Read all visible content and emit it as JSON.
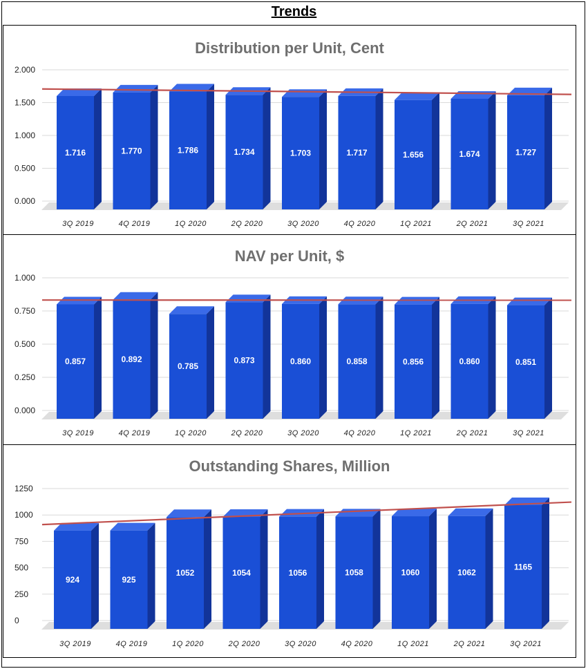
{
  "page": {
    "title": "Trends"
  },
  "chart_data": [
    {
      "type": "bar",
      "title": "Distribution per Unit, Cent",
      "categories": [
        "3Q 2019",
        "4Q 2019",
        "1Q 2020",
        "2Q 2020",
        "3Q 2020",
        "4Q 2020",
        "1Q 2021",
        "2Q 2021",
        "3Q 2021"
      ],
      "values": [
        1.716,
        1.77,
        1.786,
        1.734,
        1.703,
        1.717,
        1.656,
        1.674,
        1.727
      ],
      "labels": [
        "1.716",
        "1.770",
        "1.786",
        "1.734",
        "1.703",
        "1.717",
        "1.656",
        "1.674",
        "1.727"
      ],
      "yticks": [
        "2.000",
        "1.500",
        "1.000",
        "0.500",
        "0.000"
      ],
      "ylim": [
        0,
        2
      ],
      "trendline": [
        1.766,
        1.683
      ],
      "xlabel": "",
      "ylabel": ""
    },
    {
      "type": "bar",
      "title": "NAV per Unit, $",
      "categories": [
        "3Q 2019",
        "4Q 2019",
        "1Q 2020",
        "2Q 2020",
        "3Q 2020",
        "4Q 2020",
        "1Q 2021",
        "2Q 2021",
        "3Q 2021"
      ],
      "values": [
        0.857,
        0.892,
        0.785,
        0.873,
        0.86,
        0.858,
        0.856,
        0.86,
        0.851
      ],
      "labels": [
        "0.857",
        "0.892",
        "0.785",
        "0.873",
        "0.860",
        "0.858",
        "0.856",
        "0.860",
        "0.851"
      ],
      "yticks": [
        "1.000",
        "0.750",
        "0.500",
        "0.250",
        "0.000"
      ],
      "ylim": [
        0,
        1
      ],
      "trendline": [
        0.861,
        0.86
      ],
      "xlabel": "",
      "ylabel": ""
    },
    {
      "type": "bar",
      "title": "Outstanding Shares, Million",
      "categories": [
        "3Q 2019",
        "4Q 2019",
        "1Q 2020",
        "2Q 2020",
        "3Q 2020",
        "4Q 2020",
        "1Q 2021",
        "2Q 2021",
        "3Q 2021"
      ],
      "values": [
        924,
        925,
        1052,
        1054,
        1056,
        1058,
        1060,
        1062,
        1165
      ],
      "labels": [
        "924",
        "925",
        "1052",
        "1054",
        "1056",
        "1058",
        "1060",
        "1062",
        "1165"
      ],
      "yticks": [
        "1250",
        "1000",
        "750",
        "500",
        "250",
        "0"
      ],
      "ylim": [
        0,
        1250
      ],
      "trendline": [
        945,
        1158
      ],
      "xlabel": "",
      "ylabel": ""
    }
  ],
  "colors": {
    "bar_front": "#1a4fd6",
    "bar_side": "#12349a",
    "bar_top": "#3a6ae8",
    "trend": "#c0504d",
    "title_gray": "#6f6f6f"
  }
}
